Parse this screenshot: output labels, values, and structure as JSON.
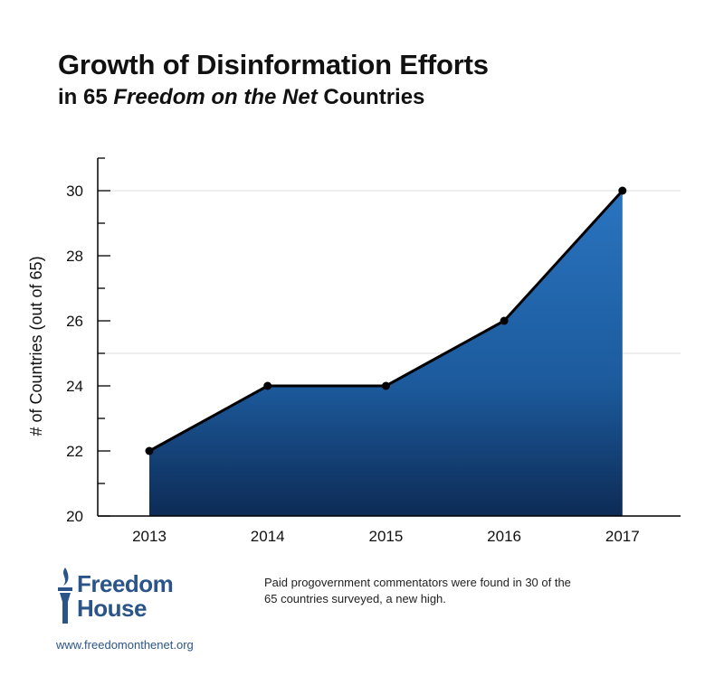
{
  "title": "Growth of Disinformation Efforts",
  "subtitle": {
    "prefix": "in 65 ",
    "italic": "Freedom on the Net",
    "suffix": " Countries"
  },
  "chart_data": {
    "type": "area",
    "title": "Growth of Disinformation Efforts in 65 Freedom on the Net Countries",
    "xlabel": "",
    "ylabel": "# of Countries (out of 65)",
    "categories": [
      "2013",
      "2014",
      "2015",
      "2016",
      "2017"
    ],
    "values": [
      22,
      24,
      24,
      26,
      30
    ],
    "ylim": [
      20,
      31
    ],
    "yticks": [
      20,
      22,
      24,
      26,
      28,
      30
    ],
    "gridlines": [
      25,
      30
    ],
    "fill_color": "#1c5a9c",
    "line_color": "#000000"
  },
  "footer": {
    "logo": "Freedom House",
    "logo_line1": "Freedom",
    "logo_line2": "House",
    "url": "www.freedomonthenet.org",
    "note": "Paid progovernment commentators were found in 30 of the 65 countries surveyed, a new high."
  },
  "colors": {
    "brand": "#2b5589"
  }
}
